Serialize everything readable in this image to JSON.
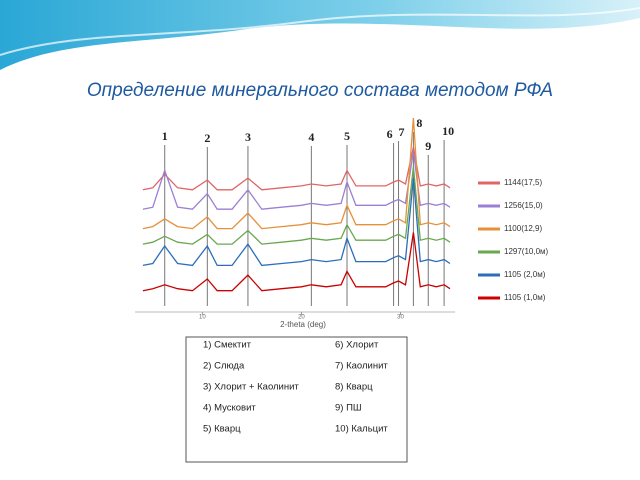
{
  "chart_data": {
    "type": "line",
    "title": "Определение минерального состава методом РФА",
    "xlabel": "2-theta (deg)",
    "x": [
      4,
      5,
      6.2,
      7.5,
      9,
      10.5,
      11.5,
      13,
      14.6,
      16,
      18,
      20,
      21,
      22.5,
      24,
      24.6,
      25.5,
      27,
      28.5,
      29.3,
      29.8,
      30.5,
      31.3,
      32,
      32.8,
      33.6,
      34.4,
      35
    ],
    "xlim": [
      3.2,
      35.5
    ],
    "xticks": [
      10,
      20,
      30
    ],
    "ylim": [
      0,
      100
    ],
    "series": [
      {
        "name": "1144(17,5)",
        "color": "#e06666",
        "values": [
          63,
          64,
          71,
          64,
          63,
          68,
          63,
          63,
          69,
          63,
          64,
          65,
          66,
          65,
          66,
          73,
          65,
          65,
          65,
          67,
          68,
          66,
          85,
          65,
          66,
          65,
          66,
          64
        ]
      },
      {
        "name": "1256(15,0)",
        "color": "#9b7fd4",
        "values": [
          53,
          54,
          73,
          54,
          53,
          61,
          53,
          53,
          63,
          53,
          54,
          55,
          56,
          55,
          56,
          67,
          55,
          55,
          55,
          57,
          58,
          56,
          83,
          55,
          56,
          55,
          56,
          54
        ]
      },
      {
        "name": "1100(12,9)",
        "color": "#e69138",
        "values": [
          43,
          44,
          48,
          44,
          43,
          49,
          43,
          43,
          51,
          43,
          44,
          45,
          46,
          45,
          46,
          55,
          45,
          45,
          45,
          47,
          48,
          46,
          100,
          45,
          46,
          45,
          46,
          44
        ]
      },
      {
        "name": "1297(10,0м)",
        "color": "#6aa84f",
        "values": [
          35,
          36,
          39,
          36,
          35,
          40,
          35,
          35,
          42,
          35,
          36,
          37,
          38,
          37,
          38,
          45,
          37,
          37,
          37,
          39,
          40,
          38,
          75,
          37,
          38,
          37,
          38,
          36
        ]
      },
      {
        "name": "1105 (2,0м)",
        "color": "#2a6ebb",
        "values": [
          24,
          25,
          34,
          25,
          24,
          34,
          24,
          24,
          35,
          24,
          25,
          26,
          27,
          26,
          27,
          38,
          26,
          26,
          26,
          28,
          29,
          27,
          69,
          26,
          27,
          26,
          27,
          25
        ]
      },
      {
        "name": "1105 (1,0м)",
        "color": "#cc0000",
        "values": [
          11,
          12,
          14,
          12,
          11,
          17,
          11,
          11,
          19,
          11,
          12,
          13,
          14,
          13,
          14,
          21,
          13,
          13,
          13,
          15,
          16,
          14,
          41,
          13,
          14,
          13,
          14,
          12
        ]
      }
    ],
    "peaks": [
      {
        "label": "1",
        "x": 6.2
      },
      {
        "label": "2",
        "x": 10.5
      },
      {
        "label": "3",
        "x": 14.6
      },
      {
        "label": "4",
        "x": 21
      },
      {
        "label": "5",
        "x": 24.6
      },
      {
        "label": "6",
        "x": 29.3
      },
      {
        "label": "7",
        "x": 29.8
      },
      {
        "label": "8",
        "x": 31.3
      },
      {
        "label": "9",
        "x": 32.8
      },
      {
        "label": "10",
        "x": 34.4
      }
    ]
  },
  "key": {
    "items": [
      "1) Смектит",
      "6) Хлорит",
      "2) Слюда",
      "7) Каолинит",
      "3) Хлорит + Каолинит",
      "8) Кварц",
      "4) Мусковит",
      "9) ПШ",
      "5) Кварц",
      "10) Кальцит"
    ]
  }
}
